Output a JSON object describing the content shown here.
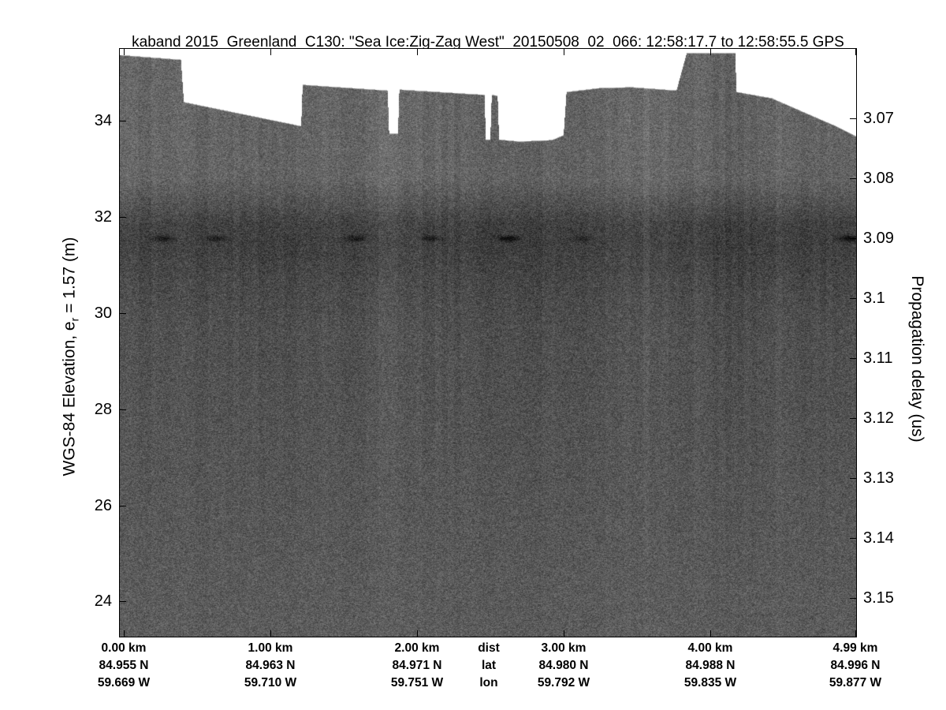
{
  "title": "kaband 2015_Greenland_C130: \"Sea Ice:Zig-Zag West\"  20150508_02_066: 12:58:17.7 to 12:58:55.5 GPS",
  "chart_data": {
    "type": "heatmap",
    "title": "kaband 2015_Greenland_C130: \"Sea Ice:Zig-Zag West\"  20150508_02_066: 12:58:17.7 to 12:58:55.5 GPS",
    "grid": false,
    "y_left": {
      "label": {
        "prefix": "WGS-84 Elevation, e",
        "sub": "r",
        "suffix": " = 1.57 (m)"
      },
      "ticks": [
        34,
        32,
        30,
        28,
        26,
        24
      ],
      "range_m": [
        35.49,
        23.27
      ]
    },
    "y_right": {
      "label": "Propagation delay (us)",
      "ticks": [
        3.07,
        3.08,
        3.09,
        3.1,
        3.11,
        3.12,
        3.13,
        3.14,
        3.15
      ],
      "range_us": [
        3.0584,
        3.1564
      ]
    },
    "x": {
      "ticks_km": [
        0,
        1,
        2,
        3,
        4,
        4.99
      ],
      "range_km": [
        -0.027,
        4.995
      ]
    },
    "bottom_rows": {
      "row_header_labels": [
        "dist",
        "lat",
        "lon"
      ],
      "row_header_km": 2.49,
      "columns": [
        {
          "km": 0,
          "dist": "0.00 km",
          "lat": "84.955 N",
          "lon": "59.669 W"
        },
        {
          "km": 1,
          "dist": "1.00 km",
          "lat": "84.963 N",
          "lon": "59.710 W"
        },
        {
          "km": 2,
          "dist": "2.00 km",
          "lat": "84.971 N",
          "lon": "59.751 W"
        },
        {
          "km": 3,
          "dist": "3.00 km",
          "lat": "84.980 N",
          "lon": "59.792 W"
        },
        {
          "km": 4,
          "dist": "4.00 km",
          "lat": "84.988 N",
          "lon": "59.835 W"
        },
        {
          "km": 4.99,
          "dist": "4.99 km",
          "lat": "84.996 N",
          "lon": "59.877 W"
        }
      ]
    },
    "surface_profile_km_m": [
      [
        -0.03,
        35.36
      ],
      [
        0.39,
        35.26
      ],
      [
        0.41,
        34.38
      ],
      [
        1.21,
        33.88
      ],
      [
        1.22,
        34.74
      ],
      [
        1.8,
        34.62
      ],
      [
        1.81,
        33.72
      ],
      [
        1.87,
        33.72
      ],
      [
        1.88,
        34.64
      ],
      [
        2.46,
        34.53
      ],
      [
        2.47,
        33.6
      ],
      [
        2.5,
        33.6
      ],
      [
        2.51,
        34.53
      ],
      [
        2.55,
        34.51
      ],
      [
        2.56,
        33.6
      ],
      [
        2.7,
        33.56
      ],
      [
        2.92,
        33.59
      ],
      [
        3.0,
        33.69
      ],
      [
        3.02,
        34.59
      ],
      [
        3.24,
        34.67
      ],
      [
        3.46,
        34.69
      ],
      [
        3.77,
        34.62
      ],
      [
        3.84,
        35.4
      ],
      [
        4.17,
        35.4
      ],
      [
        4.18,
        34.59
      ],
      [
        4.42,
        34.46
      ],
      [
        4.69,
        34.1
      ],
      [
        4.85,
        33.89
      ],
      [
        5.0,
        33.66
      ]
    ],
    "dark_band": {
      "top_m": 32.8,
      "center_m": 31.55,
      "bottom_m": 30.9
    },
    "dark_spots": [
      {
        "km": 0.27,
        "elevation_m": 31.55,
        "amp": 40
      },
      {
        "km": 0.63,
        "elevation_m": 31.55,
        "amp": 36
      },
      {
        "km": 1.58,
        "elevation_m": 31.55,
        "amp": 40
      },
      {
        "km": 2.1,
        "elevation_m": 31.55,
        "amp": 38
      },
      {
        "km": 2.62,
        "elevation_m": 31.55,
        "amp": 58
      },
      {
        "km": 3.12,
        "elevation_m": 31.55,
        "amp": 26
      },
      {
        "km": 4.95,
        "elevation_m": 31.55,
        "amp": 58
      }
    ],
    "colors": {
      "plot_background": "#ffffff",
      "frame": "#000000",
      "text": "#000000",
      "data_gray_mean": "#5f5f5f",
      "dark_band_gray": "#464646",
      "upper_block_gray": "#666666"
    }
  }
}
